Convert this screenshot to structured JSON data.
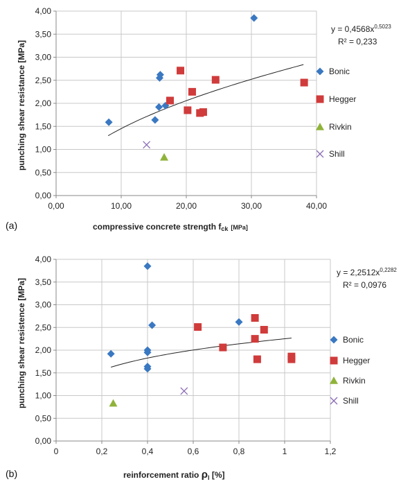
{
  "colors": {
    "bonic": "#3A78C2",
    "hegger": "#D03B3B",
    "rivkin": "#8FB33A",
    "shill": "#8A6BB5",
    "grid": "#C8C8C8",
    "axis": "#888888",
    "trend": "#222222"
  },
  "chart_data": [
    {
      "panel_label": "(a)",
      "type": "scatter",
      "xlabel": "compressive concrete strength f",
      "xlabel_sub": "ck",
      "xlabel_unit": "[MPa]",
      "ylabel": "punching shear resistance  [MPa]",
      "xlim": [
        0,
        40
      ],
      "ylim": [
        0,
        4
      ],
      "x_ticks": [
        "0,00",
        "10,00",
        "20,00",
        "30,00",
        "40,00"
      ],
      "y_ticks": [
        "0,00",
        "0,50",
        "1,00",
        "1,50",
        "2,00",
        "2,50",
        "3,00",
        "3,50",
        "4,00"
      ],
      "grid": true,
      "legend_position": "right",
      "trendline": {
        "a": 0.4568,
        "b": 0.5023,
        "x_range": [
          8,
          38
        ]
      },
      "equation": {
        "line1": "y = 0,4568x",
        "exponent": "0,5023",
        "line2": "R² = 0,233"
      },
      "series": [
        {
          "name": "Bonic",
          "marker": "diamond",
          "color": "#3A78C2",
          "points": [
            [
              8.1,
              1.59
            ],
            [
              15.2,
              1.64
            ],
            [
              15.8,
              1.92
            ],
            [
              15.9,
              2.55
            ],
            [
              16.0,
              2.62
            ],
            [
              16.8,
              1.95
            ],
            [
              30.4,
              3.85
            ]
          ]
        },
        {
          "name": "Hegger",
          "marker": "square",
          "color": "#D03B3B",
          "points": [
            [
              17.5,
              2.06
            ],
            [
              19.1,
              2.71
            ],
            [
              20.2,
              1.85
            ],
            [
              20.9,
              2.25
            ],
            [
              22.1,
              1.79
            ],
            [
              22.6,
              1.81
            ],
            [
              24.5,
              2.51
            ],
            [
              38.1,
              2.45
            ]
          ]
        },
        {
          "name": "Rivkin",
          "marker": "triangle",
          "color": "#8FB33A",
          "points": [
            [
              16.6,
              0.83
            ]
          ]
        },
        {
          "name": "Shill",
          "marker": "x",
          "color": "#8A6BB5",
          "points": [
            [
              13.9,
              1.1
            ]
          ]
        }
      ]
    },
    {
      "panel_label": "(b)",
      "type": "scatter",
      "xlabel": "reinforcement ratio ",
      "xlabel_symbol": "ρ",
      "xlabel_sub": "l",
      "xlabel_unit": " [%]",
      "ylabel": "punching shear resistence  [MPa]",
      "xlim": [
        0,
        1.2
      ],
      "ylim": [
        0,
        4
      ],
      "x_ticks": [
        "0",
        "0,2",
        "0,4",
        "0,6",
        "0,8",
        "1",
        "1,2"
      ],
      "y_ticks": [
        "0,00",
        "0,50",
        "1,00",
        "1,50",
        "2,00",
        "2,50",
        "3,00",
        "3,50",
        "4,00"
      ],
      "grid": true,
      "legend_position": "right",
      "trendline": {
        "a": 2.2512,
        "b": 0.2282,
        "x_range": [
          0.24,
          1.03
        ]
      },
      "equation": {
        "line1": "y = 2,2512x",
        "exponent": "0,2282",
        "line2": "R² = 0,0976"
      },
      "series": [
        {
          "name": "Bonic",
          "marker": "diamond",
          "color": "#3A78C2",
          "points": [
            [
              0.24,
              1.92
            ],
            [
              0.4,
              1.59
            ],
            [
              0.4,
              1.64
            ],
            [
              0.4,
              1.95
            ],
            [
              0.4,
              2.0
            ],
            [
              0.4,
              3.85
            ],
            [
              0.42,
              2.55
            ],
            [
              0.8,
              2.62
            ]
          ]
        },
        {
          "name": "Hegger",
          "marker": "square",
          "color": "#D03B3B",
          "points": [
            [
              0.62,
              2.51
            ],
            [
              0.73,
              2.06
            ],
            [
              0.87,
              2.25
            ],
            [
              0.87,
              2.71
            ],
            [
              0.88,
              1.8
            ],
            [
              0.91,
              2.45
            ],
            [
              1.03,
              1.8
            ],
            [
              1.03,
              1.86
            ]
          ]
        },
        {
          "name": "Rivkin",
          "marker": "triangle",
          "color": "#8FB33A",
          "points": [
            [
              0.25,
              0.83
            ]
          ]
        },
        {
          "name": "Shill",
          "marker": "x",
          "color": "#8A6BB5",
          "points": [
            [
              0.56,
              1.1
            ]
          ]
        }
      ]
    }
  ]
}
